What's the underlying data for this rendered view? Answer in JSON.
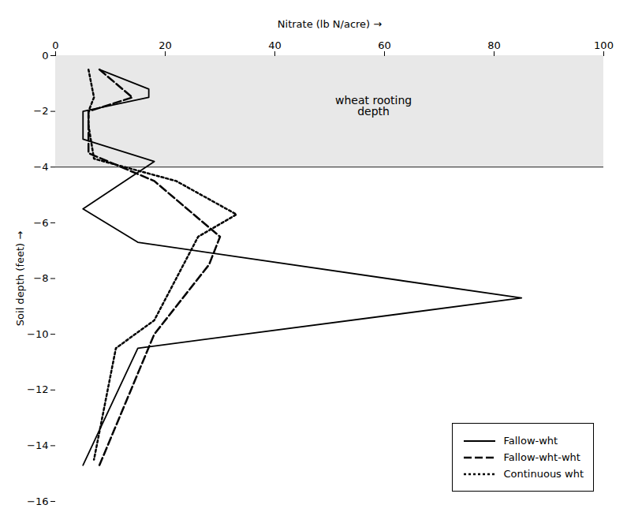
{
  "chart_data": {
    "type": "line",
    "title": "Nitrate (lb N/acre)",
    "ylabel": "Soil depth (feet)",
    "xlim": [
      0,
      100
    ],
    "ylim": [
      -16,
      0
    ],
    "xticks": [
      0,
      20,
      40,
      60,
      80,
      100
    ],
    "yticks": [
      0,
      -2,
      -4,
      -6,
      -8,
      -10,
      -12,
      -14,
      -16
    ],
    "grid": false,
    "legend": "lower right",
    "shaded_region": {
      "y": [
        -4,
        0
      ],
      "color": "#e8e8e8"
    },
    "annotations": [
      {
        "text": "wheat rooting\ndepth",
        "x": 58,
        "y": -1.8
      }
    ],
    "series": [
      {
        "name": "Fallow-wht",
        "color": "#000000",
        "line_style": "solid",
        "x": [
          8,
          17,
          17,
          5,
          5,
          18,
          5,
          15,
          85,
          15,
          5
        ],
        "values": [
          -0.5,
          -1.2,
          -1.5,
          -2.0,
          -3.0,
          -3.8,
          -5.5,
          -6.7,
          -8.7,
          -10.5,
          -14.7
        ]
      },
      {
        "name": "Fallow-wht-wht",
        "color": "#000000",
        "line_style": "dashed",
        "x": [
          8,
          14,
          6,
          6,
          18,
          30,
          28,
          18,
          8
        ],
        "values": [
          -0.5,
          -1.5,
          -2.0,
          -3.5,
          -4.5,
          -6.5,
          -7.5,
          -10.0,
          -14.7
        ]
      },
      {
        "name": "Continuous wht",
        "color": "#000000",
        "line_style": "dotted",
        "x": [
          6,
          7,
          6,
          6,
          7,
          22,
          33,
          26,
          18,
          11,
          9,
          7
        ],
        "values": [
          -0.5,
          -1.5,
          -2.0,
          -2.5,
          -3.7,
          -4.5,
          -5.7,
          -6.5,
          -9.5,
          -10.5,
          -12.5,
          -14.5
        ]
      }
    ]
  }
}
